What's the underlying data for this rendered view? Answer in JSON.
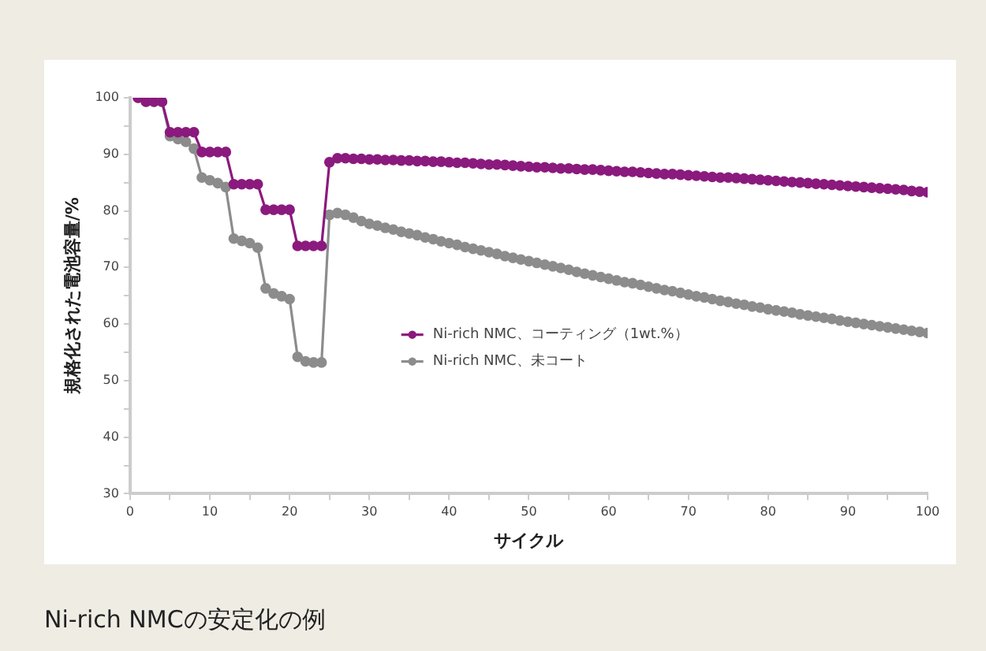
{
  "chart_data": {
    "type": "line",
    "title": "Ni-rich NMCの安定化の例",
    "xlabel": "サイクル",
    "ylabel": "規格化された電池容量/%",
    "x": [
      1,
      2,
      3,
      4,
      5,
      6,
      7,
      8,
      9,
      10,
      11,
      12,
      13,
      14,
      15,
      16,
      17,
      18,
      19,
      20,
      21,
      22,
      23,
      24,
      25,
      26,
      27,
      28,
      29,
      30,
      31,
      32,
      33,
      34,
      35,
      36,
      37,
      38,
      39,
      40,
      41,
      42,
      43,
      44,
      45,
      46,
      47,
      48,
      49,
      50,
      51,
      52,
      53,
      54,
      55,
      56,
      57,
      58,
      59,
      60,
      61,
      62,
      63,
      64,
      65,
      66,
      67,
      68,
      69,
      70,
      71,
      72,
      73,
      74,
      75,
      76,
      77,
      78,
      79,
      80,
      81,
      82,
      83,
      84,
      85,
      86,
      87,
      88,
      89,
      90,
      91,
      92,
      93,
      94,
      95,
      96,
      97,
      98,
      99,
      100
    ],
    "series": [
      {
        "name": "Ni-rich NMC、コーティング（1wt.%）",
        "color": "#8b1a7e",
        "values": [
          100,
          99.3,
          99.3,
          99.3,
          93.9,
          93.9,
          93.9,
          93.9,
          90.4,
          90.4,
          90.4,
          90.4,
          84.7,
          84.7,
          84.7,
          84.7,
          80.2,
          80.2,
          80.2,
          80.2,
          73.8,
          73.8,
          73.8,
          73.8,
          88.6,
          89.3,
          89.3,
          89.2,
          89.2,
          89.1,
          89.1,
          89.0,
          89.0,
          88.9,
          88.9,
          88.8,
          88.8,
          88.7,
          88.7,
          88.6,
          88.5,
          88.5,
          88.4,
          88.3,
          88.2,
          88.2,
          88.1,
          88.0,
          87.9,
          87.8,
          87.7,
          87.7,
          87.6,
          87.5,
          87.5,
          87.4,
          87.3,
          87.3,
          87.2,
          87.1,
          87.0,
          86.9,
          86.9,
          86.8,
          86.7,
          86.6,
          86.5,
          86.5,
          86.4,
          86.3,
          86.2,
          86.1,
          86.0,
          85.9,
          85.9,
          85.8,
          85.7,
          85.6,
          85.5,
          85.4,
          85.3,
          85.2,
          85.1,
          85.0,
          84.9,
          84.8,
          84.7,
          84.6,
          84.5,
          84.4,
          84.3,
          84.2,
          84.1,
          84.0,
          83.9,
          83.8,
          83.7,
          83.5,
          83.4,
          83.3
        ]
      },
      {
        "name": "Ni-rich NMC、未コート",
        "color": "#8c8c8c",
        "values": [
          100,
          99.3,
          99.3,
          99.3,
          93.2,
          92.7,
          92.2,
          91.0,
          85.9,
          85.4,
          84.9,
          84.2,
          75.1,
          74.7,
          74.3,
          73.5,
          66.3,
          65.4,
          64.9,
          64.4,
          54.2,
          53.4,
          53.2,
          53.2,
          79.3,
          79.6,
          79.3,
          78.8,
          78.2,
          77.7,
          77.4,
          77.0,
          76.7,
          76.3,
          76.0,
          75.7,
          75.3,
          75.0,
          74.6,
          74.3,
          74.0,
          73.6,
          73.3,
          73.0,
          72.7,
          72.4,
          72.0,
          71.7,
          71.4,
          71.1,
          70.8,
          70.5,
          70.2,
          69.9,
          69.6,
          69.2,
          68.9,
          68.6,
          68.3,
          68.0,
          67.7,
          67.4,
          67.2,
          66.9,
          66.6,
          66.3,
          66.0,
          65.8,
          65.5,
          65.2,
          64.9,
          64.7,
          64.4,
          64.1,
          63.9,
          63.6,
          63.4,
          63.1,
          62.9,
          62.6,
          62.4,
          62.2,
          62.0,
          61.7,
          61.5,
          61.3,
          61.1,
          60.9,
          60.6,
          60.4,
          60.2,
          60.0,
          59.8,
          59.6,
          59.4,
          59.2,
          59.0,
          58.8,
          58.6,
          58.4
        ]
      }
    ],
    "xlim": [
      0,
      100
    ],
    "xticks": [
      0,
      {
        "value": 5,
        "label": null
      },
      10,
      {
        "value": 15,
        "label": null
      },
      20,
      {
        "value": 25,
        "label": null
      },
      30,
      {
        "value": 35,
        "label": null
      },
      40,
      {
        "value": 45,
        "label": null
      },
      50,
      {
        "value": 55,
        "label": null
      },
      60,
      {
        "value": 65,
        "label": null
      },
      70,
      {
        "value": 75,
        "label": null
      },
      80,
      {
        "value": 85,
        "label": null
      },
      90,
      {
        "value": 95,
        "label": null
      },
      100
    ],
    "ylim": [
      30,
      100
    ],
    "yticks": [
      30,
      {
        "value": 35,
        "label": null
      },
      40,
      {
        "value": 45,
        "label": null
      },
      50,
      {
        "value": 55,
        "label": null
      },
      60,
      {
        "value": 65,
        "label": null
      },
      70,
      {
        "value": 75,
        "label": null
      },
      80,
      {
        "value": 85,
        "label": null
      },
      90,
      {
        "value": 95,
        "label": null
      },
      100
    ],
    "grid": false,
    "legend": "bottom",
    "marker": "circle",
    "line_style": "solid"
  }
}
